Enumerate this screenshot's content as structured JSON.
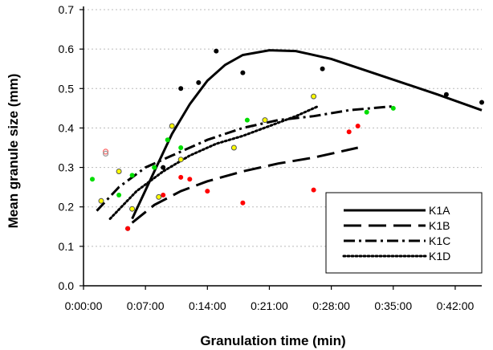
{
  "chart_data": {
    "type": "scatter",
    "xlabel": "Granulation time (min)",
    "ylabel": "Mean granule size (mm)",
    "xlim": [
      0,
      45
    ],
    "ylim": [
      0,
      0.7
    ],
    "x_ticks": [
      0,
      7,
      14,
      21,
      28,
      35,
      42
    ],
    "x_tick_labels": [
      "0:00:00",
      "0:07:00",
      "0:14:00",
      "0:21:00",
      "0:28:00",
      "0:35:00",
      "0:42:00"
    ],
    "y_ticks": [
      0,
      0.1,
      0.2,
      0.3,
      0.4,
      0.5,
      0.6,
      0.7
    ],
    "y_tick_labels": [
      "0.0",
      "0.1",
      "0.2",
      "0.3",
      "0.4",
      "0.5",
      "0.6",
      "0.7"
    ],
    "grid": "horizontal dotted",
    "legend_position": "bottom-right",
    "series": [
      {
        "name": "K1A",
        "color": "#000000",
        "line_style": "solid",
        "points": [
          [
            5,
            0.145
          ],
          [
            9,
            0.3
          ],
          [
            11,
            0.5
          ],
          [
            13,
            0.515
          ],
          [
            15,
            0.595
          ],
          [
            18,
            0.54
          ],
          [
            27,
            0.55
          ],
          [
            41,
            0.485
          ],
          [
            45,
            0.465
          ]
        ],
        "fit": [
          [
            5.5,
            0.17
          ],
          [
            8,
            0.29
          ],
          [
            10,
            0.385
          ],
          [
            12,
            0.46
          ],
          [
            14,
            0.52
          ],
          [
            16,
            0.56
          ],
          [
            18,
            0.585
          ],
          [
            21,
            0.597
          ],
          [
            24,
            0.595
          ],
          [
            28,
            0.575
          ],
          [
            32,
            0.545
          ],
          [
            36,
            0.515
          ],
          [
            40,
            0.485
          ],
          [
            45,
            0.445
          ]
        ]
      },
      {
        "name": "K1B",
        "color": "#ff0000",
        "line_style": "long dash",
        "points": [
          [
            5,
            0.145
          ],
          [
            9,
            0.23
          ],
          [
            11,
            0.275
          ],
          [
            12,
            0.27
          ],
          [
            14,
            0.24
          ],
          [
            18,
            0.21
          ],
          [
            26,
            0.243
          ],
          [
            30,
            0.39
          ],
          [
            31,
            0.405
          ]
        ],
        "fit": [
          [
            5.5,
            0.16
          ],
          [
            8,
            0.205
          ],
          [
            11,
            0.24
          ],
          [
            14,
            0.265
          ],
          [
            18,
            0.29
          ],
          [
            22,
            0.31
          ],
          [
            26,
            0.325
          ],
          [
            31,
            0.35
          ]
        ]
      },
      {
        "name": "K1C",
        "color": "#00dd00",
        "line_style": "dash-dot",
        "points": [
          [
            1,
            0.27
          ],
          [
            4,
            0.23
          ],
          [
            5.5,
            0.28
          ],
          [
            8,
            0.3
          ],
          [
            9.5,
            0.37
          ],
          [
            11,
            0.35
          ],
          [
            18.5,
            0.42
          ],
          [
            32,
            0.44
          ],
          [
            35,
            0.45
          ]
        ],
        "fit": [
          [
            1.5,
            0.19
          ],
          [
            4,
            0.25
          ],
          [
            7,
            0.3
          ],
          [
            10,
            0.33
          ],
          [
            14,
            0.37
          ],
          [
            18,
            0.4
          ],
          [
            22,
            0.42
          ],
          [
            26,
            0.43
          ],
          [
            30,
            0.445
          ],
          [
            35,
            0.455
          ]
        ]
      },
      {
        "name": "K1D",
        "color": "#ffff00",
        "line_style": "dotted",
        "points": [
          [
            2,
            0.215
          ],
          [
            4,
            0.29
          ],
          [
            5.5,
            0.195
          ],
          [
            8.5,
            0.225
          ],
          [
            10,
            0.405
          ],
          [
            11,
            0.32
          ],
          [
            17,
            0.35
          ],
          [
            20.5,
            0.42
          ],
          [
            26,
            0.48
          ]
        ],
        "fit": [
          [
            3,
            0.17
          ],
          [
            6,
            0.24
          ],
          [
            9,
            0.29
          ],
          [
            12,
            0.33
          ],
          [
            15,
            0.36
          ],
          [
            18,
            0.38
          ],
          [
            21,
            0.405
          ],
          [
            24,
            0.43
          ],
          [
            26.5,
            0.455
          ]
        ]
      }
    ],
    "extra_markers": [
      {
        "x": 2.5,
        "y": 0.34,
        "color": "#ff6666"
      },
      {
        "x": 2.5,
        "y": 0.335,
        "color": "#999999"
      }
    ]
  }
}
